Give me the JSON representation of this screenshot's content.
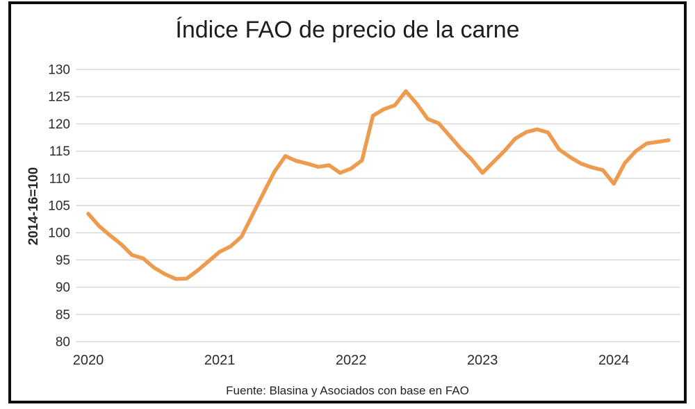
{
  "chart_data": {
    "type": "line",
    "title": "Índice FAO de precio de la carne",
    "ylabel": "2014-16=100",
    "source": "Fuente: Blasina y Asociados con base en FAO",
    "ylim": [
      80,
      130
    ],
    "y_ticks": [
      130,
      125,
      120,
      115,
      110,
      105,
      100,
      95,
      90,
      85,
      80
    ],
    "x_tick_labels": [
      "2020",
      "2021",
      "2022",
      "2023",
      "2024"
    ],
    "x_tick_month_index": [
      0,
      12,
      24,
      36,
      48
    ],
    "start_month": "2020-01",
    "end_month": "2024-06",
    "grid": true,
    "legend_position": "none",
    "line_color": "#ED9B4F",
    "grid_color": "#D9D9D9",
    "series": [
      {
        "name": "Índice FAO de precio de la carne",
        "values": [
          103.5,
          101.2,
          99.5,
          97.9,
          95.9,
          95.3,
          93.6,
          92.4,
          91.5,
          91.6,
          93.1,
          94.8,
          96.5,
          97.5,
          99.3,
          103.3,
          107.3,
          111.2,
          114.1,
          113.2,
          112.7,
          112.1,
          112.4,
          111.0,
          111.8,
          113.3,
          121.5,
          122.7,
          123.4,
          126.0,
          123.7,
          120.9,
          120.1,
          117.8,
          115.5,
          113.5,
          111.0,
          113.0,
          115.0,
          117.3,
          118.5,
          119.0,
          118.4,
          115.3,
          113.9,
          112.7,
          112.0,
          111.5,
          109.0,
          112.8,
          115.0,
          116.4,
          116.7,
          117.0
        ]
      }
    ]
  }
}
